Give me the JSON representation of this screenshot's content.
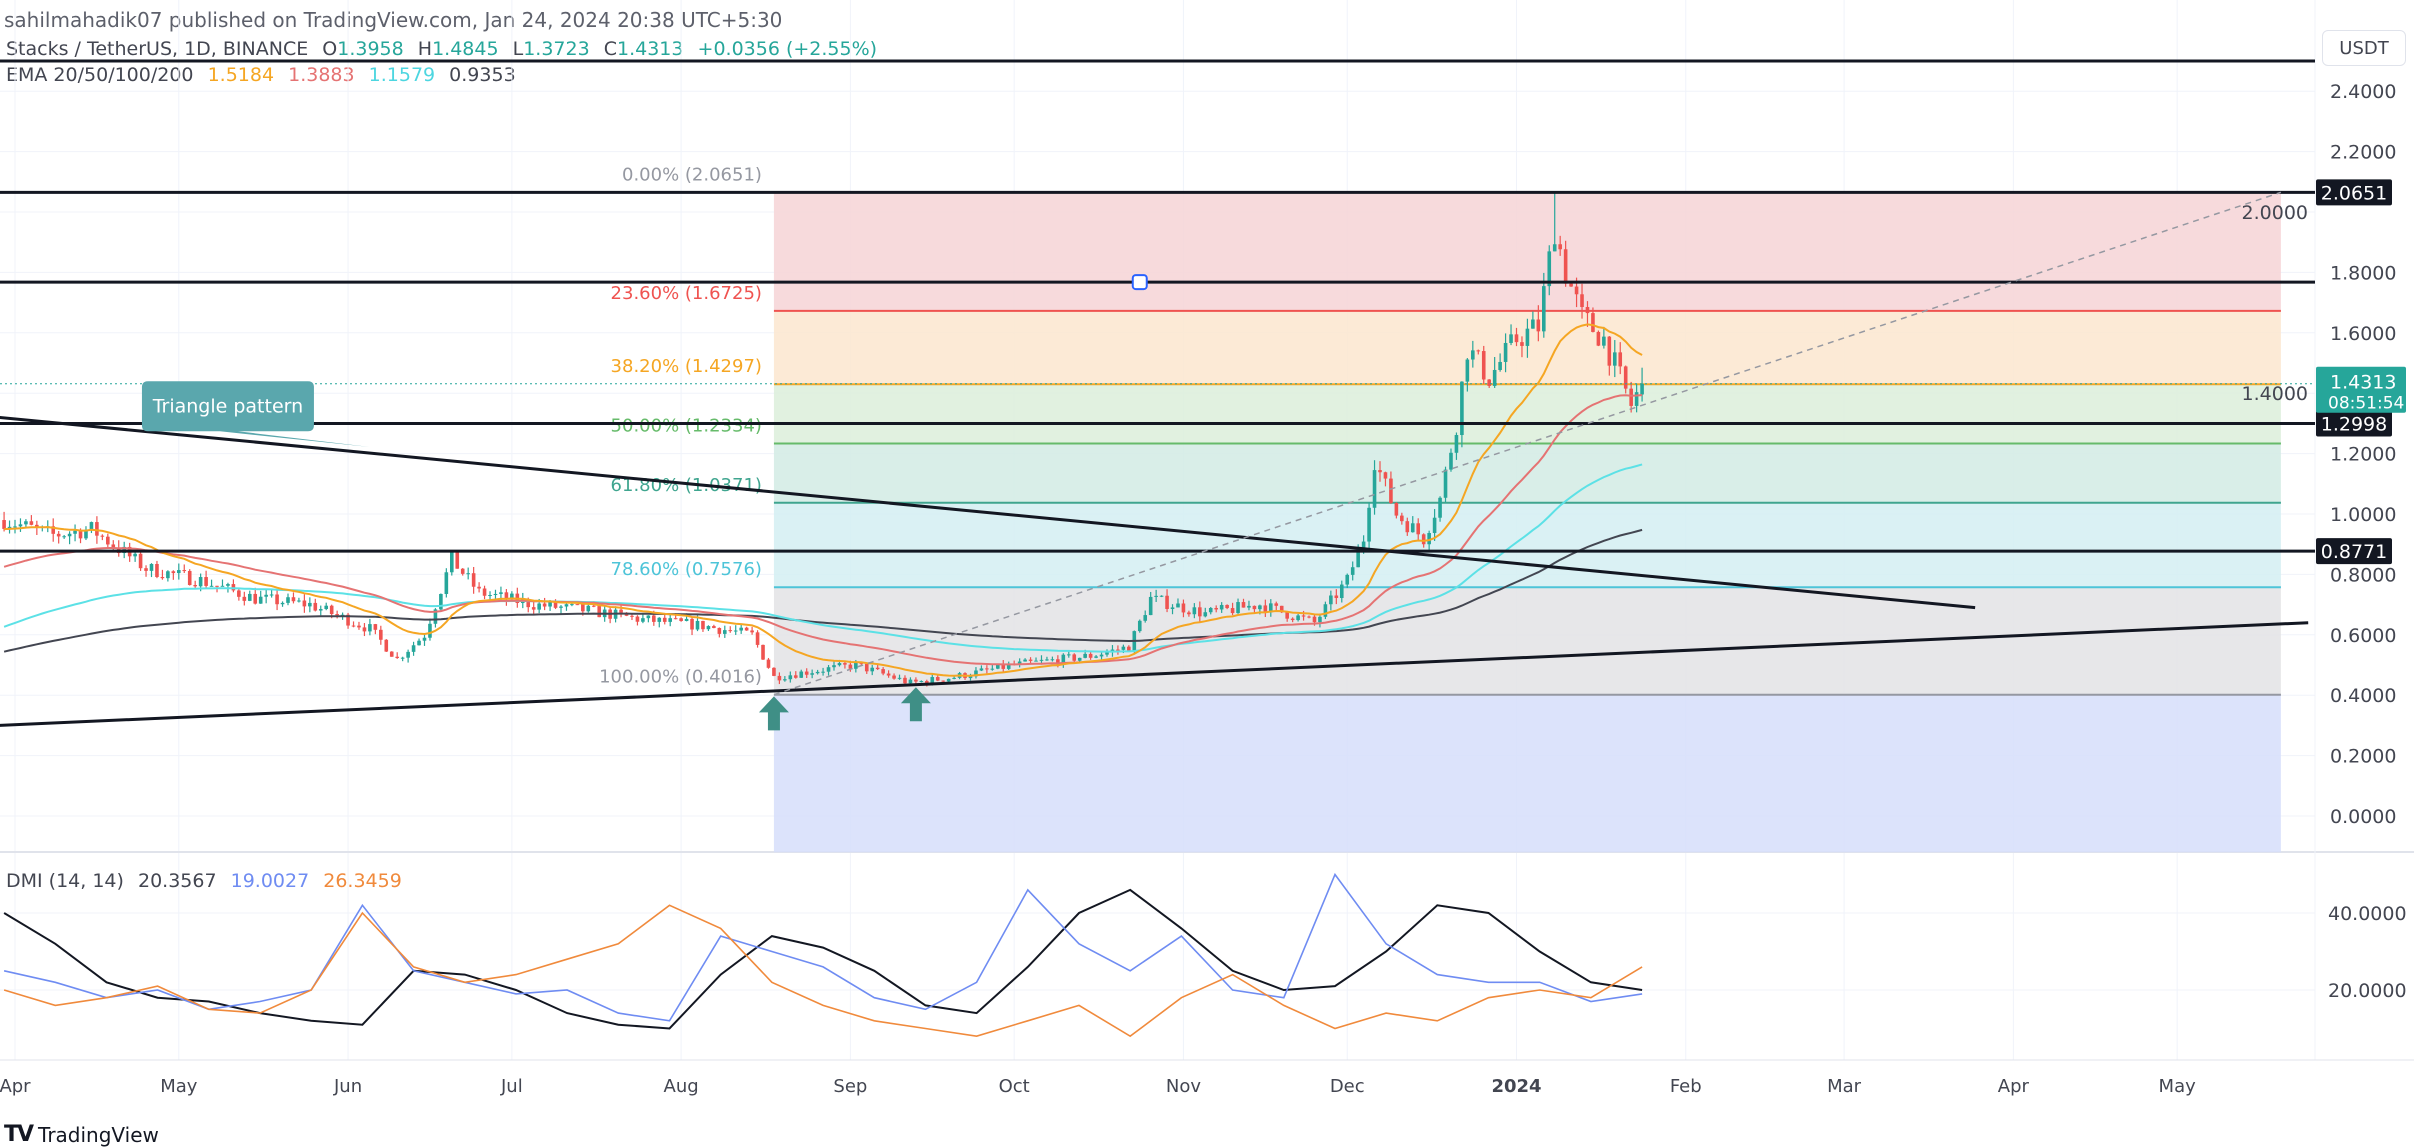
{
  "header": {
    "publisher": "sahilmahadik07 published on TradingView.com, Jan 24, 2024 20:38 UTC+5:30",
    "symbol": "Stacks / TetherUS, 1D, BINANCE",
    "open_label": "O",
    "open": "1.3958",
    "high_label": "H",
    "high": "1.4845",
    "low_label": "L",
    "low": "1.3723",
    "close_label": "C",
    "close": "1.4313",
    "change": "+0.0356 (+2.55%)",
    "ema_label": "EMA 20/50/100/200",
    "ema_values": [
      "1.5184",
      "1.3883",
      "1.1579",
      "0.9353"
    ],
    "currency": "USDT"
  },
  "colors": {
    "up": "#26a69a",
    "down": "#ef5350",
    "ema20": "#f5a623",
    "ema50": "#e57373",
    "ema100": "#5ce1e6",
    "ema200": "#434651",
    "dmi_adx": "#131722",
    "dmi_plus": "#6f8cf2",
    "dmi_minus": "#f08a3c",
    "callout": "#5aa7ad",
    "arrow": "#3f8f86"
  },
  "chart_data": [
    {
      "type": "candlestick",
      "title": "Stacks / TetherUS, 1D, BINANCE",
      "ylabel": "USDT",
      "ylim": [
        -0.12,
        2.5
      ],
      "y_ticks": [
        "2.4000",
        "2.2000",
        "2.0000",
        "1.8000",
        "1.6000",
        "1.4000",
        "1.2000",
        "1.0000",
        "0.8000",
        "0.6000",
        "0.4000",
        "0.2000",
        "0.0000"
      ],
      "x_ticks": [
        {
          "label": "Apr",
          "date": "2023-04-01"
        },
        {
          "label": "May",
          "date": "2023-05-01"
        },
        {
          "label": "Jun",
          "date": "2023-06-01"
        },
        {
          "label": "Jul",
          "date": "2023-07-01"
        },
        {
          "label": "Aug",
          "date": "2023-08-01"
        },
        {
          "label": "Sep",
          "date": "2023-09-01"
        },
        {
          "label": "Oct",
          "date": "2023-10-01"
        },
        {
          "label": "Nov",
          "date": "2023-11-01"
        },
        {
          "label": "Dec",
          "date": "2023-12-01"
        },
        {
          "label": "2024",
          "date": "2024-01-01",
          "bold": true
        },
        {
          "label": "Feb",
          "date": "2024-02-01"
        },
        {
          "label": "Mar",
          "date": "2024-03-01"
        },
        {
          "label": "Apr",
          "date": "2024-04-01"
        },
        {
          "label": "May",
          "date": "2024-05-01"
        }
      ],
      "close_path": [
        [
          "2023-03-30",
          0.98
        ],
        [
          "2023-04-08",
          0.93
        ],
        [
          "2023-04-15",
          0.95
        ],
        [
          "2023-04-25",
          0.82
        ],
        [
          "2023-05-05",
          0.78
        ],
        [
          "2023-05-15",
          0.72
        ],
        [
          "2023-05-25",
          0.7
        ],
        [
          "2023-06-05",
          0.62
        ],
        [
          "2023-06-10",
          0.52
        ],
        [
          "2023-06-15",
          0.6
        ],
        [
          "2023-06-20",
          0.85
        ],
        [
          "2023-06-25",
          0.74
        ],
        [
          "2023-07-05",
          0.7
        ],
        [
          "2023-07-15",
          0.68
        ],
        [
          "2023-07-25",
          0.65
        ],
        [
          "2023-08-05",
          0.63
        ],
        [
          "2023-08-14",
          0.6
        ],
        [
          "2023-08-18",
          0.46
        ],
        [
          "2023-08-25",
          0.48
        ],
        [
          "2023-09-02",
          0.5
        ],
        [
          "2023-09-12",
          0.44
        ],
        [
          "2023-09-20",
          0.46
        ],
        [
          "2023-10-01",
          0.5
        ],
        [
          "2023-10-15",
          0.53
        ],
        [
          "2023-10-22",
          0.56
        ],
        [
          "2023-10-26",
          0.72
        ],
        [
          "2023-11-05",
          0.67
        ],
        [
          "2023-11-15",
          0.7
        ],
        [
          "2023-11-25",
          0.64
        ],
        [
          "2023-12-01",
          0.78
        ],
        [
          "2023-12-04",
          0.92
        ],
        [
          "2023-12-06",
          1.18
        ],
        [
          "2023-12-10",
          1.0
        ],
        [
          "2023-12-15",
          0.92
        ],
        [
          "2023-12-18",
          1.05
        ],
        [
          "2023-12-21",
          1.3
        ],
        [
          "2023-12-23",
          1.55
        ],
        [
          "2023-12-27",
          1.45
        ],
        [
          "2024-01-01",
          1.58
        ],
        [
          "2024-01-05",
          1.62
        ],
        [
          "2024-01-08",
          1.95
        ],
        [
          "2024-01-10",
          1.8
        ],
        [
          "2024-01-13",
          1.65
        ],
        [
          "2024-01-17",
          1.58
        ],
        [
          "2024-01-20",
          1.45
        ],
        [
          "2024-01-22",
          1.36
        ],
        [
          "2024-01-24",
          1.4313
        ]
      ],
      "series": [
        {
          "name": "EMA 20",
          "value": "1.5184"
        },
        {
          "name": "EMA 50",
          "value": "1.3883"
        },
        {
          "name": "EMA 100",
          "value": "1.1579"
        },
        {
          "name": "EMA 200",
          "value": "0.9353"
        }
      ],
      "current_price": {
        "value": 1.4313,
        "label": "1.4313",
        "countdown": "08:51:54"
      },
      "horizontal_levels": [
        {
          "price": 2.5,
          "label": ""
        },
        {
          "price": 2.0651,
          "label": "2.0651"
        },
        {
          "price": 1.768,
          "label": ""
        },
        {
          "price": 1.2998,
          "label": "1.2998"
        },
        {
          "price": 0.8771,
          "label": "0.8771"
        }
      ],
      "fibonacci": {
        "start_date": "2023-08-18",
        "end_date": "2024-05-20",
        "low": 0.4016,
        "high": 2.0651,
        "extension_bottom": -0.12,
        "levels": [
          {
            "ratio": "0.00%",
            "price": 2.0651,
            "label": "0.00% (2.0651)",
            "line": "#9598a1",
            "fill": "#f6d3d6"
          },
          {
            "ratio": "23.60%",
            "price": 1.6725,
            "label": "23.60% (1.6725)",
            "line": "#ef5350",
            "fill": "#fbe6cf"
          },
          {
            "ratio": "38.20%",
            "price": 1.4297,
            "label": "38.20% (1.4297)",
            "line": "#f5a623",
            "fill": "#dcefdb"
          },
          {
            "ratio": "50.00%",
            "price": 1.2334,
            "label": "50.00% (1.2334)",
            "line": "#66bb6a",
            "fill": "#d2ebe4"
          },
          {
            "ratio": "61.80%",
            "price": 1.0371,
            "label": "61.80% (1.0371)",
            "line": "#3fa58f",
            "fill": "#d3eef2"
          },
          {
            "ratio": "78.60%",
            "price": 0.7576,
            "label": "78.60% (0.7576)",
            "line": "#4dc4d8",
            "fill": "#e3e3e5"
          },
          {
            "ratio": "100.00%",
            "price": 0.4016,
            "label": "100.00% (0.4016)",
            "line": "#9598a1",
            "fill": "#d6defa"
          }
        ]
      },
      "trendlines": [
        {
          "name": "triangle-upper",
          "from": [
            "2023-03-29",
            1.32
          ],
          "to": [
            "2024-03-25",
            0.69
          ]
        },
        {
          "name": "triangle-lower",
          "from": [
            "2023-03-29",
            0.3
          ],
          "to": [
            "2024-05-25",
            0.64
          ]
        },
        {
          "name": "fib-diagonal",
          "from": [
            "2023-08-18",
            0.4016
          ],
          "to": [
            "2024-05-20",
            2.0651
          ],
          "dashed": true
        }
      ],
      "annotations": [
        {
          "text": "Triangle pattern",
          "date": "2023-05-10",
          "price": 1.36
        },
        {
          "type": "arrow-up",
          "date": "2023-08-18",
          "price": 0.33
        },
        {
          "type": "arrow-up",
          "date": "2023-09-13",
          "price": 0.36
        },
        {
          "type": "marker",
          "date": "2023-10-24",
          "price": 1.768
        }
      ]
    },
    {
      "type": "line",
      "title": "DMI (14, 14)",
      "legend_values": [
        "20.3567",
        "19.0027",
        "26.3459"
      ],
      "y_ticks": [
        "40.0000",
        "20.0000"
      ],
      "start_date": "2023-03-30",
      "end_date": "2024-01-24",
      "series": [
        {
          "name": "ADX",
          "values": [
            40,
            32,
            22,
            18,
            17,
            14,
            12,
            11,
            25,
            24,
            20,
            14,
            11,
            10,
            24,
            34,
            31,
            25,
            16,
            14,
            26,
            40,
            46,
            36,
            25,
            20,
            21,
            30,
            42,
            40,
            30,
            22,
            20
          ]
        },
        {
          "name": "+DI",
          "values": [
            25,
            22,
            18,
            20,
            15,
            17,
            20,
            42,
            25,
            22,
            19,
            20,
            14,
            12,
            34,
            30,
            26,
            18,
            15,
            22,
            46,
            32,
            25,
            34,
            20,
            18,
            50,
            32,
            24,
            22,
            22,
            17,
            19
          ]
        },
        {
          "name": "-DI",
          "values": [
            20,
            16,
            18,
            21,
            15,
            14,
            20,
            40,
            26,
            22,
            24,
            28,
            32,
            42,
            36,
            22,
            16,
            12,
            10,
            8,
            12,
            16,
            8,
            18,
            24,
            16,
            10,
            14,
            12,
            18,
            20,
            18,
            26
          ]
        }
      ]
    }
  ],
  "footer": {
    "brand": "TradingView"
  }
}
